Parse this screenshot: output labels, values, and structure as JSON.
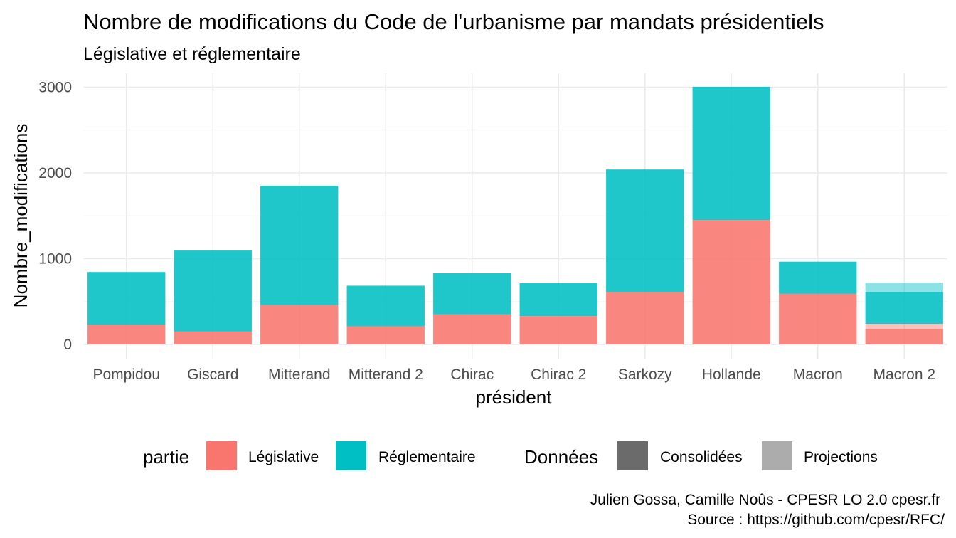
{
  "chart_data": {
    "type": "bar",
    "stacked": true,
    "title": "Nombre de modifications du Code de l'urbanisme par mandats présidentiels",
    "subtitle": "Législative et réglementaire",
    "xlabel": "président",
    "ylabel": "Nombre_modifications",
    "ylim": [
      0,
      3150
    ],
    "yticks": [
      0,
      1000,
      2000,
      3000
    ],
    "grid": true,
    "categories": [
      "Pompidou",
      "Giscard",
      "Mitterand",
      "Mitterand 2",
      "Chirac",
      "Chirac 2",
      "Sarkozy",
      "Hollande",
      "Macron",
      "Macron 2"
    ],
    "series": [
      {
        "name": "Législative",
        "color": "#F8766D",
        "values": [
          230,
          150,
          460,
          210,
          350,
          330,
          610,
          1450,
          590,
          180
        ],
        "projection": [
          0,
          0,
          0,
          0,
          0,
          0,
          0,
          0,
          0,
          60
        ]
      },
      {
        "name": "Réglementaire",
        "color": "#00BFC4",
        "values": [
          615,
          945,
          1390,
          475,
          480,
          385,
          1430,
          1555,
          375,
          370
        ],
        "projection": [
          0,
          0,
          0,
          0,
          0,
          0,
          0,
          0,
          0,
          110
        ]
      }
    ],
    "legend": {
      "placement": "bottom",
      "fill_title": "partie",
      "fill_items": [
        {
          "label": "Législative",
          "color": "#F8766D"
        },
        {
          "label": "Réglementaire",
          "color": "#00BFC4"
        }
      ],
      "alpha_title": "Données",
      "alpha_items": [
        {
          "label": "Consolidées",
          "color": "#6b6b6b"
        },
        {
          "label": "Projections",
          "color": "#acacac"
        }
      ]
    },
    "caption": [
      "Julien Gossa, Camille Noûs - CPESR LO 2.0 cpesr.fr ",
      "Source : https://github.com/cpesr/RFC/"
    ]
  }
}
